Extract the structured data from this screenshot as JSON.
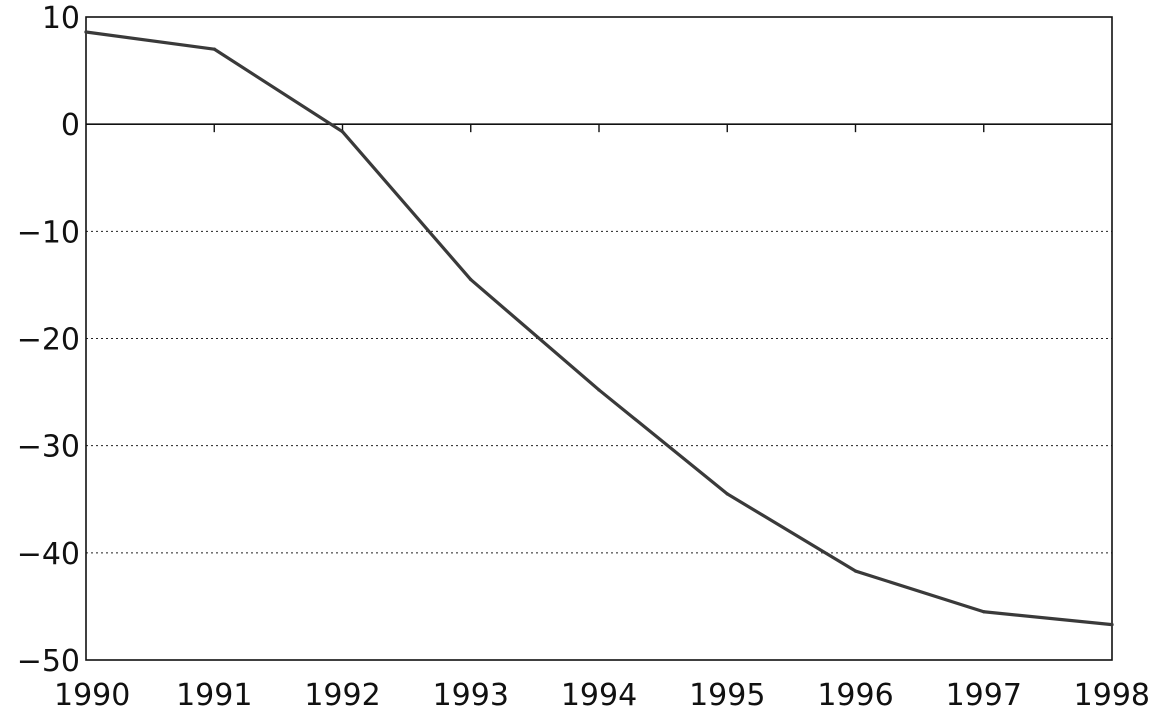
{
  "chart_data": {
    "type": "line",
    "title": "",
    "xlabel": "",
    "ylabel": "",
    "x": [
      1990,
      1991,
      1992,
      1993,
      1994,
      1995,
      1996,
      1997,
      1998
    ],
    "x_tick_labels": [
      "1990",
      "1991",
      "1992",
      "1993",
      "1994",
      "1995",
      "1996",
      "1997",
      "1998"
    ],
    "xlim": [
      1990,
      1998
    ],
    "ylim": [
      -50,
      10
    ],
    "y_ticks": [
      10,
      0,
      -10,
      -20,
      -30,
      -40,
      -50
    ],
    "y_tick_labels": [
      "10",
      "0",
      "−10",
      "−20",
      "−30",
      "−40",
      "−50"
    ],
    "series": [
      {
        "values": [
          8.6,
          7.0,
          -0.7,
          -14.5,
          -24.8,
          -34.5,
          -41.7,
          -45.5,
          -46.7
        ]
      }
    ],
    "grid": "horizontal dotted lines at negative y ticks",
    "zero_line": true,
    "legend": "none",
    "colors": {
      "line": "#3a3a3a",
      "axes": "#111111"
    }
  }
}
